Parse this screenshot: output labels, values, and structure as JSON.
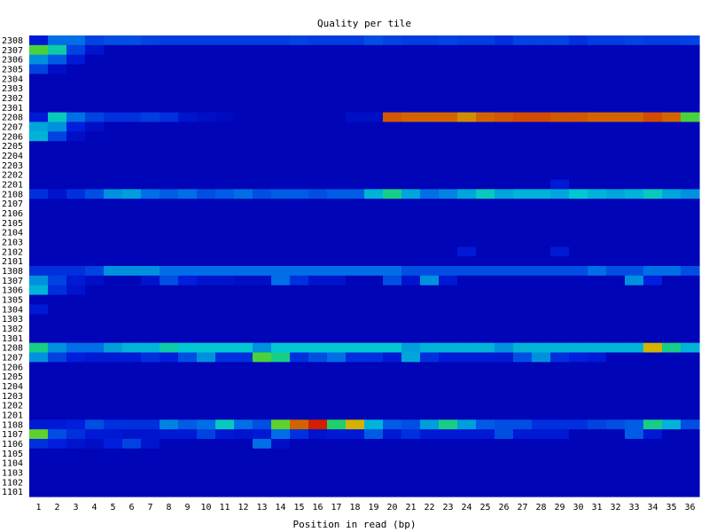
{
  "chart_data": {
    "type": "heatmap",
    "title": "Quality per tile",
    "xlabel": "Position in read (bp)",
    "ylabel": "",
    "x": [
      1,
      2,
      3,
      4,
      5,
      6,
      7,
      8,
      9,
      10,
      11,
      12,
      13,
      14,
      15,
      16,
      17,
      18,
      19,
      20,
      21,
      22,
      23,
      24,
      25,
      26,
      27,
      28,
      29,
      30,
      31,
      32,
      33,
      34,
      35,
      36
    ],
    "tiles": [
      "2308",
      "2307",
      "2306",
      "2305",
      "2304",
      "2303",
      "2302",
      "2301",
      "2208",
      "2207",
      "2206",
      "2205",
      "2204",
      "2203",
      "2202",
      "2201",
      "2108",
      "2107",
      "2106",
      "2105",
      "2104",
      "2103",
      "2102",
      "2101",
      "1308",
      "1307",
      "1306",
      "1305",
      "1304",
      "1303",
      "1302",
      "1301",
      "1208",
      "1207",
      "1206",
      "1205",
      "1204",
      "1203",
      "1202",
      "1201",
      "1108",
      "1107",
      "1106",
      "1105",
      "1104",
      "1103",
      "1102",
      "1101"
    ],
    "value_scale": "0 = no deviation (dark blue) to 1 = large deviation (red)",
    "baseline": 0.02,
    "cells": [
      [
        "2308",
        1,
        0.1
      ],
      [
        "2308",
        2,
        0.25
      ],
      [
        "2308",
        3,
        0.25
      ],
      [
        "2308",
        4,
        0.18
      ],
      [
        "2308",
        5,
        0.2
      ],
      [
        "2308",
        6,
        0.2
      ],
      [
        "2308",
        7,
        0.18
      ],
      [
        "2308",
        8,
        0.17
      ],
      [
        "2308",
        9,
        0.17
      ],
      [
        "2308",
        10,
        0.17
      ],
      [
        "2308",
        11,
        0.17
      ],
      [
        "2308",
        12,
        0.17
      ],
      [
        "2308",
        13,
        0.17
      ],
      [
        "2308",
        14,
        0.17
      ],
      [
        "2308",
        15,
        0.18
      ],
      [
        "2308",
        16,
        0.17
      ],
      [
        "2308",
        17,
        0.17
      ],
      [
        "2308",
        18,
        0.17
      ],
      [
        "2308",
        19,
        0.2
      ],
      [
        "2308",
        20,
        0.18
      ],
      [
        "2308",
        21,
        0.17
      ],
      [
        "2308",
        22,
        0.17
      ],
      [
        "2308",
        23,
        0.18
      ],
      [
        "2308",
        24,
        0.17
      ],
      [
        "2308",
        25,
        0.17
      ],
      [
        "2308",
        26,
        0.15
      ],
      [
        "2308",
        27,
        0.18
      ],
      [
        "2308",
        28,
        0.18
      ],
      [
        "2308",
        29,
        0.18
      ],
      [
        "2308",
        30,
        0.15
      ],
      [
        "2308",
        31,
        0.17
      ],
      [
        "2308",
        32,
        0.17
      ],
      [
        "2308",
        33,
        0.18
      ],
      [
        "2308",
        34,
        0.17
      ],
      [
        "2308",
        35,
        0.17
      ],
      [
        "2308",
        36,
        0.18
      ],
      [
        "2307",
        1,
        0.55
      ],
      [
        "2307",
        2,
        0.42
      ],
      [
        "2307",
        3,
        0.18
      ],
      [
        "2307",
        4,
        0.08
      ],
      [
        "2306",
        1,
        0.3
      ],
      [
        "2306",
        2,
        0.22
      ],
      [
        "2306",
        3,
        0.1
      ],
      [
        "2305",
        1,
        0.18
      ],
      [
        "2305",
        2,
        0.06
      ],
      [
        "2208",
        1,
        0.1
      ],
      [
        "2208",
        2,
        0.4
      ],
      [
        "2208",
        3,
        0.25
      ],
      [
        "2208",
        4,
        0.18
      ],
      [
        "2208",
        5,
        0.15
      ],
      [
        "2208",
        6,
        0.15
      ],
      [
        "2208",
        7,
        0.17
      ],
      [
        "2208",
        8,
        0.15
      ],
      [
        "2208",
        9,
        0.08
      ],
      [
        "2208",
        10,
        0.06
      ],
      [
        "2208",
        11,
        0.04
      ],
      [
        "2208",
        18,
        0.06
      ],
      [
        "2208",
        19,
        0.06
      ],
      [
        "2208",
        20,
        0.86
      ],
      [
        "2208",
        21,
        0.84
      ],
      [
        "2208",
        22,
        0.84
      ],
      [
        "2208",
        23,
        0.84
      ],
      [
        "2208",
        24,
        0.78
      ],
      [
        "2208",
        25,
        0.84
      ],
      [
        "2208",
        26,
        0.86
      ],
      [
        "2208",
        27,
        0.88
      ],
      [
        "2208",
        28,
        0.88
      ],
      [
        "2208",
        29,
        0.86
      ],
      [
        "2208",
        30,
        0.86
      ],
      [
        "2208",
        31,
        0.84
      ],
      [
        "2208",
        32,
        0.84
      ],
      [
        "2208",
        33,
        0.84
      ],
      [
        "2208",
        34,
        0.88
      ],
      [
        "2208",
        35,
        0.84
      ],
      [
        "2208",
        36,
        0.55
      ],
      [
        "2207",
        1,
        0.33
      ],
      [
        "2207",
        2,
        0.3
      ],
      [
        "2207",
        3,
        0.12
      ],
      [
        "2207",
        4,
        0.06
      ],
      [
        "2206",
        1,
        0.35
      ],
      [
        "2206",
        2,
        0.18
      ],
      [
        "2206",
        3,
        0.06
      ],
      [
        "2201",
        29,
        0.1
      ],
      [
        "2108",
        1,
        0.15
      ],
      [
        "2108",
        2,
        0.08
      ],
      [
        "2108",
        3,
        0.15
      ],
      [
        "2108",
        4,
        0.2
      ],
      [
        "2108",
        5,
        0.3
      ],
      [
        "2108",
        6,
        0.32
      ],
      [
        "2108",
        7,
        0.25
      ],
      [
        "2108",
        8,
        0.22
      ],
      [
        "2108",
        9,
        0.25
      ],
      [
        "2108",
        10,
        0.2
      ],
      [
        "2108",
        11,
        0.22
      ],
      [
        "2108",
        12,
        0.25
      ],
      [
        "2108",
        13,
        0.2
      ],
      [
        "2108",
        14,
        0.22
      ],
      [
        "2108",
        15,
        0.22
      ],
      [
        "2108",
        16,
        0.2
      ],
      [
        "2108",
        17,
        0.22
      ],
      [
        "2108",
        18,
        0.22
      ],
      [
        "2108",
        19,
        0.35
      ],
      [
        "2108",
        20,
        0.45
      ],
      [
        "2108",
        21,
        0.33
      ],
      [
        "2108",
        22,
        0.25
      ],
      [
        "2108",
        23,
        0.28
      ],
      [
        "2108",
        24,
        0.33
      ],
      [
        "2108",
        25,
        0.4
      ],
      [
        "2108",
        26,
        0.33
      ],
      [
        "2108",
        27,
        0.35
      ],
      [
        "2108",
        28,
        0.35
      ],
      [
        "2108",
        29,
        0.33
      ],
      [
        "2108",
        30,
        0.38
      ],
      [
        "2108",
        31,
        0.35
      ],
      [
        "2108",
        32,
        0.33
      ],
      [
        "2108",
        33,
        0.35
      ],
      [
        "2108",
        34,
        0.4
      ],
      [
        "2108",
        35,
        0.33
      ],
      [
        "2108",
        36,
        0.3
      ],
      [
        "2102",
        24,
        0.1
      ],
      [
        "2102",
        29,
        0.1
      ],
      [
        "1308",
        1,
        0.15
      ],
      [
        "1308",
        2,
        0.15
      ],
      [
        "1308",
        3,
        0.15
      ],
      [
        "1308",
        4,
        0.18
      ],
      [
        "1308",
        5,
        0.3
      ],
      [
        "1308",
        6,
        0.3
      ],
      [
        "1308",
        7,
        0.3
      ],
      [
        "1308",
        8,
        0.25
      ],
      [
        "1308",
        9,
        0.25
      ],
      [
        "1308",
        10,
        0.25
      ],
      [
        "1308",
        11,
        0.25
      ],
      [
        "1308",
        12,
        0.25
      ],
      [
        "1308",
        13,
        0.25
      ],
      [
        "1308",
        14,
        0.25
      ],
      [
        "1308",
        15,
        0.25
      ],
      [
        "1308",
        16,
        0.25
      ],
      [
        "1308",
        17,
        0.25
      ],
      [
        "1308",
        18,
        0.25
      ],
      [
        "1308",
        19,
        0.25
      ],
      [
        "1308",
        20,
        0.25
      ],
      [
        "1308",
        21,
        0.2
      ],
      [
        "1308",
        22,
        0.2
      ],
      [
        "1308",
        23,
        0.2
      ],
      [
        "1308",
        24,
        0.2
      ],
      [
        "1308",
        25,
        0.2
      ],
      [
        "1308",
        26,
        0.2
      ],
      [
        "1308",
        27,
        0.2
      ],
      [
        "1308",
        28,
        0.2
      ],
      [
        "1308",
        29,
        0.2
      ],
      [
        "1308",
        30,
        0.2
      ],
      [
        "1308",
        31,
        0.25
      ],
      [
        "1308",
        32,
        0.2
      ],
      [
        "1308",
        33,
        0.2
      ],
      [
        "1308",
        34,
        0.25
      ],
      [
        "1308",
        35,
        0.25
      ],
      [
        "1308",
        36,
        0.2
      ],
      [
        "1307",
        1,
        0.3
      ],
      [
        "1307",
        2,
        0.18
      ],
      [
        "1307",
        3,
        0.1
      ],
      [
        "1307",
        4,
        0.06
      ],
      [
        "1307",
        7,
        0.08
      ],
      [
        "1307",
        8,
        0.2
      ],
      [
        "1307",
        9,
        0.12
      ],
      [
        "1307",
        10,
        0.08
      ],
      [
        "1307",
        11,
        0.08
      ],
      [
        "1307",
        12,
        0.06
      ],
      [
        "1307",
        13,
        0.06
      ],
      [
        "1307",
        14,
        0.25
      ],
      [
        "1307",
        15,
        0.15
      ],
      [
        "1307",
        16,
        0.08
      ],
      [
        "1307",
        17,
        0.08
      ],
      [
        "1307",
        20,
        0.2
      ],
      [
        "1307",
        21,
        0.08
      ],
      [
        "1307",
        22,
        0.3
      ],
      [
        "1307",
        23,
        0.1
      ],
      [
        "1307",
        33,
        0.3
      ],
      [
        "1307",
        34,
        0.12
      ],
      [
        "1306",
        1,
        0.35
      ],
      [
        "1306",
        2,
        0.15
      ],
      [
        "1306",
        3,
        0.08
      ],
      [
        "1304",
        1,
        0.1
      ],
      [
        "1208",
        1,
        0.45
      ],
      [
        "1208",
        2,
        0.3
      ],
      [
        "1208",
        3,
        0.25
      ],
      [
        "1208",
        4,
        0.25
      ],
      [
        "1208",
        5,
        0.32
      ],
      [
        "1208",
        6,
        0.35
      ],
      [
        "1208",
        7,
        0.35
      ],
      [
        "1208",
        8,
        0.42
      ],
      [
        "1208",
        9,
        0.38
      ],
      [
        "1208",
        10,
        0.38
      ],
      [
        "1208",
        11,
        0.38
      ],
      [
        "1208",
        12,
        0.38
      ],
      [
        "1208",
        13,
        0.3
      ],
      [
        "1208",
        14,
        0.38
      ],
      [
        "1208",
        15,
        0.38
      ],
      [
        "1208",
        16,
        0.38
      ],
      [
        "1208",
        17,
        0.38
      ],
      [
        "1208",
        18,
        0.38
      ],
      [
        "1208",
        19,
        0.38
      ],
      [
        "1208",
        20,
        0.38
      ],
      [
        "1208",
        21,
        0.32
      ],
      [
        "1208",
        22,
        0.35
      ],
      [
        "1208",
        23,
        0.35
      ],
      [
        "1208",
        24,
        0.35
      ],
      [
        "1208",
        25,
        0.35
      ],
      [
        "1208",
        26,
        0.3
      ],
      [
        "1208",
        27,
        0.35
      ],
      [
        "1208",
        28,
        0.35
      ],
      [
        "1208",
        29,
        0.35
      ],
      [
        "1208",
        30,
        0.35
      ],
      [
        "1208",
        31,
        0.35
      ],
      [
        "1208",
        32,
        0.35
      ],
      [
        "1208",
        33,
        0.35
      ],
      [
        "1208",
        34,
        0.72
      ],
      [
        "1208",
        35,
        0.45
      ],
      [
        "1208",
        36,
        0.35
      ],
      [
        "1207",
        1,
        0.3
      ],
      [
        "1207",
        2,
        0.18
      ],
      [
        "1207",
        3,
        0.12
      ],
      [
        "1207",
        4,
        0.1
      ],
      [
        "1207",
        5,
        0.1
      ],
      [
        "1207",
        6,
        0.1
      ],
      [
        "1207",
        7,
        0.15
      ],
      [
        "1207",
        8,
        0.12
      ],
      [
        "1207",
        9,
        0.2
      ],
      [
        "1207",
        10,
        0.3
      ],
      [
        "1207",
        11,
        0.15
      ],
      [
        "1207",
        12,
        0.15
      ],
      [
        "1207",
        13,
        0.55
      ],
      [
        "1207",
        14,
        0.45
      ],
      [
        "1207",
        15,
        0.15
      ],
      [
        "1207",
        16,
        0.2
      ],
      [
        "1207",
        17,
        0.25
      ],
      [
        "1207",
        18,
        0.15
      ],
      [
        "1207",
        19,
        0.15
      ],
      [
        "1207",
        20,
        0.1
      ],
      [
        "1207",
        21,
        0.33
      ],
      [
        "1207",
        22,
        0.15
      ],
      [
        "1207",
        23,
        0.1
      ],
      [
        "1207",
        24,
        0.1
      ],
      [
        "1207",
        25,
        0.1
      ],
      [
        "1207",
        26,
        0.1
      ],
      [
        "1207",
        27,
        0.2
      ],
      [
        "1207",
        28,
        0.3
      ],
      [
        "1207",
        29,
        0.15
      ],
      [
        "1207",
        30,
        0.12
      ],
      [
        "1207",
        31,
        0.1
      ],
      [
        "1108",
        1,
        0.1
      ],
      [
        "1108",
        2,
        0.1
      ],
      [
        "1108",
        3,
        0.12
      ],
      [
        "1108",
        4,
        0.2
      ],
      [
        "1108",
        5,
        0.15
      ],
      [
        "1108",
        6,
        0.15
      ],
      [
        "1108",
        7,
        0.15
      ],
      [
        "1108",
        8,
        0.28
      ],
      [
        "1108",
        9,
        0.22
      ],
      [
        "1108",
        10,
        0.25
      ],
      [
        "1108",
        11,
        0.4
      ],
      [
        "1108",
        12,
        0.25
      ],
      [
        "1108",
        13,
        0.2
      ],
      [
        "1108",
        14,
        0.58
      ],
      [
        "1108",
        15,
        0.84
      ],
      [
        "1108",
        16,
        0.95
      ],
      [
        "1108",
        17,
        0.48
      ],
      [
        "1108",
        18,
        0.72
      ],
      [
        "1108",
        19,
        0.35
      ],
      [
        "1108",
        20,
        0.22
      ],
      [
        "1108",
        21,
        0.2
      ],
      [
        "1108",
        22,
        0.32
      ],
      [
        "1108",
        23,
        0.45
      ],
      [
        "1108",
        24,
        0.32
      ],
      [
        "1108",
        25,
        0.22
      ],
      [
        "1108",
        26,
        0.2
      ],
      [
        "1108",
        27,
        0.2
      ],
      [
        "1108",
        28,
        0.15
      ],
      [
        "1108",
        29,
        0.15
      ],
      [
        "1108",
        30,
        0.15
      ],
      [
        "1108",
        31,
        0.18
      ],
      [
        "1108",
        32,
        0.2
      ],
      [
        "1108",
        33,
        0.22
      ],
      [
        "1108",
        34,
        0.45
      ],
      [
        "1108",
        35,
        0.35
      ],
      [
        "1108",
        36,
        0.2
      ],
      [
        "1107",
        1,
        0.58
      ],
      [
        "1107",
        2,
        0.2
      ],
      [
        "1107",
        3,
        0.15
      ],
      [
        "1107",
        4,
        0.1
      ],
      [
        "1107",
        5,
        0.1
      ],
      [
        "1107",
        6,
        0.08
      ],
      [
        "1107",
        7,
        0.08
      ],
      [
        "1107",
        8,
        0.1
      ],
      [
        "1107",
        9,
        0.1
      ],
      [
        "1107",
        10,
        0.18
      ],
      [
        "1107",
        11,
        0.1
      ],
      [
        "1107",
        12,
        0.08
      ],
      [
        "1107",
        13,
        0.1
      ],
      [
        "1107",
        14,
        0.25
      ],
      [
        "1107",
        15,
        0.15
      ],
      [
        "1107",
        16,
        0.08
      ],
      [
        "1107",
        17,
        0.1
      ],
      [
        "1107",
        18,
        0.1
      ],
      [
        "1107",
        19,
        0.22
      ],
      [
        "1107",
        20,
        0.1
      ],
      [
        "1107",
        21,
        0.15
      ],
      [
        "1107",
        22,
        0.1
      ],
      [
        "1107",
        23,
        0.1
      ],
      [
        "1107",
        24,
        0.1
      ],
      [
        "1107",
        25,
        0.1
      ],
      [
        "1107",
        26,
        0.2
      ],
      [
        "1107",
        27,
        0.1
      ],
      [
        "1107",
        28,
        0.1
      ],
      [
        "1107",
        29,
        0.1
      ],
      [
        "1107",
        33,
        0.22
      ],
      [
        "1107",
        34,
        0.1
      ],
      [
        "1106",
        1,
        0.15
      ],
      [
        "1106",
        2,
        0.12
      ],
      [
        "1106",
        3,
        0.08
      ],
      [
        "1106",
        4,
        0.06
      ],
      [
        "1106",
        5,
        0.12
      ],
      [
        "1106",
        6,
        0.18
      ],
      [
        "1106",
        7,
        0.08
      ],
      [
        "1106",
        13,
        0.25
      ],
      [
        "1106",
        14,
        0.06
      ]
    ]
  }
}
